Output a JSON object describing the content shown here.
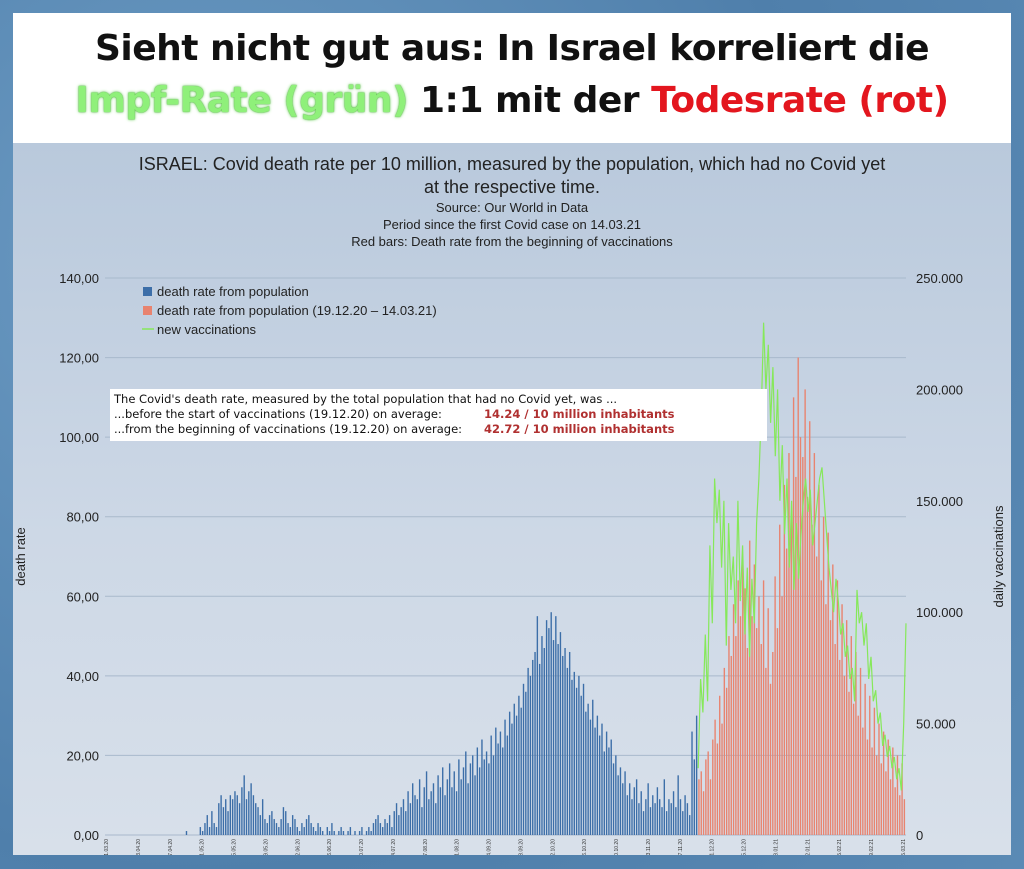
{
  "headline": {
    "line1": "Sieht nicht gut aus: In Israel korreliert die",
    "line2_green": "Impf-Rate (grün)",
    "line2_mid": " 1:1 mit der ",
    "line2_red": "Todesrate (rot)"
  },
  "colors": {
    "blue_bars": "#3c6ea8",
    "red_bars": "#e8836f",
    "green_line": "#86e85a",
    "annotation_value": "#b03030",
    "headline_red": "#e3161e",
    "headline_green": "#8ff07a"
  },
  "annotation": {
    "line1": "The Covid's death rate, measured by the total population that had no Covid yet, was ...",
    "line2_text": "...before the start of vaccinations (19.12.20) on average:",
    "line2_value": "14.24 / 10 million inhabitants",
    "line3_text": "...from the beginning of vaccinations (19.12.20) on average:",
    "line3_value": "42.72 / 10 million inhabitants"
  },
  "chart_data": {
    "type": "bar",
    "title": "ISRAEL: Covid death rate per 10 million, measured by the population, which had no Covid yet at the respective time.",
    "subtitle_lines": [
      "Source: Our World in Data",
      "Period since the first Covid case on 14.03.21",
      "Red bars: Death rate from the beginning of vaccinations"
    ],
    "ylabel": "death rate",
    "y2label": "daily vaccinations",
    "ylim": [
      0,
      140
    ],
    "y2lim": [
      0,
      250000
    ],
    "y_ticks": [
      "0,00",
      "20,00",
      "40,00",
      "60,00",
      "80,00",
      "100,00",
      "120,00",
      "140,00"
    ],
    "y2_ticks": [
      "0",
      "50.000",
      "100.000",
      "150.000",
      "200.000",
      "250.000"
    ],
    "grid": true,
    "legend_position": "top-left",
    "legend": [
      "death rate from population",
      "death rate from population (19.12.20 – 14.03.21)",
      "new vaccinations"
    ],
    "x_tick_labels": [
      "21.03.20",
      "03.04.20",
      "17.04.20",
      "01.05.20",
      "15.05.20",
      "29.05.20",
      "12.06.20",
      "26.06.20",
      "10.07.20",
      "24.07.20",
      "07.08.20",
      "21.08.20",
      "04.09.20",
      "18.09.20",
      "02.10.20",
      "16.10.20",
      "30.10.20",
      "13.11.20",
      "27.11.20",
      "11.12.20",
      "25.12.20",
      "08.01.21",
      "22.01.21",
      "05.02.21",
      "19.02.21",
      "05.03.21"
    ],
    "series": [
      {
        "name": "death rate from population",
        "values": [
          0,
          0,
          0,
          0,
          0,
          0,
          0,
          0,
          0,
          0,
          0,
          0,
          0,
          0,
          0,
          0,
          0,
          0,
          0,
          0,
          0,
          0,
          0,
          0,
          0,
          0,
          0,
          0,
          0,
          0,
          0,
          0,
          0,
          0,
          0,
          1,
          0,
          0,
          0,
          0,
          0,
          2,
          1,
          3,
          5,
          2,
          6,
          3,
          2,
          8,
          10,
          7,
          9,
          6,
          10,
          9,
          11,
          10,
          8,
          12,
          15,
          9,
          11,
          13,
          10,
          8,
          7,
          5,
          9,
          4,
          3,
          5,
          6,
          4,
          3,
          2,
          4,
          7,
          6,
          3,
          2,
          5,
          4,
          2,
          1,
          3,
          2,
          4,
          5,
          3,
          2,
          1,
          3,
          2,
          1,
          0,
          2,
          1,
          3,
          1,
          0,
          1,
          2,
          1,
          0,
          1,
          2,
          0,
          1,
          0,
          1,
          2,
          0,
          1,
          2,
          1,
          3,
          4,
          5,
          3,
          2,
          4,
          3,
          5,
          2,
          6,
          8,
          5,
          7,
          9,
          6,
          11,
          8,
          13,
          10,
          9,
          14,
          7,
          12,
          16,
          9,
          11,
          13,
          8,
          15,
          12,
          17,
          10,
          14,
          18,
          12,
          16,
          11,
          19,
          14,
          17,
          21,
          13,
          18,
          20,
          15,
          22,
          17,
          24,
          19,
          21,
          18,
          25,
          20,
          27,
          23,
          26,
          22,
          29,
          25,
          31,
          28,
          33,
          30,
          35,
          32,
          38,
          36,
          42,
          40,
          44,
          46,
          55,
          43,
          50,
          47,
          54,
          52,
          56,
          49,
          55,
          48,
          51,
          45,
          47,
          42,
          46,
          39,
          41,
          37,
          40,
          35,
          38,
          31,
          33,
          29,
          34,
          27,
          30,
          25,
          28,
          21,
          26,
          22,
          24,
          18,
          20,
          15,
          17,
          13,
          16,
          10,
          13,
          9,
          12,
          14,
          8,
          11,
          6,
          9,
          13,
          7,
          10,
          8,
          12,
          9,
          7,
          14,
          6,
          9,
          8,
          11,
          7,
          15,
          9,
          6,
          10,
          8,
          5,
          26,
          19,
          30
        ],
        "color": "#3c6ea8"
      },
      {
        "name": "death rate from population (19.12.20 – 14.03.21)",
        "values": [
          14,
          16,
          11,
          19,
          21,
          14,
          24,
          29,
          23,
          35,
          28,
          42,
          37,
          50,
          45,
          58,
          50,
          64,
          55,
          70,
          62,
          47,
          74,
          55,
          68,
          52,
          60,
          48,
          64,
          42,
          57,
          38,
          46,
          65,
          52,
          78,
          60,
          88,
          72,
          96,
          80,
          110,
          90,
          120,
          100,
          95,
          112,
          85,
          104,
          78,
          96,
          70,
          88,
          64,
          80,
          58,
          76,
          54,
          68,
          48,
          64,
          44,
          58,
          40,
          54,
          36,
          50,
          33,
          46,
          30,
          42,
          27,
          38,
          24,
          35,
          22,
          32,
          20,
          28,
          18,
          26,
          16,
          24,
          14,
          22,
          12,
          20,
          10,
          18,
          9
        ],
        "color": "#e8836f"
      },
      {
        "name": "new vaccinations",
        "values": [
          30000,
          70000,
          55000,
          90000,
          60000,
          130000,
          95000,
          160000,
          140000,
          155000,
          120000,
          150000,
          85000,
          140000,
          110000,
          125000,
          95000,
          150000,
          105000,
          130000,
          90000,
          120000,
          80000,
          115000,
          95000,
          140000,
          160000,
          190000,
          230000,
          200000,
          220000,
          185000,
          210000,
          170000,
          200000,
          150000,
          175000,
          135000,
          160000,
          120000,
          150000,
          110000,
          140000,
          115000,
          135000,
          150000,
          160000,
          145000,
          155000,
          130000,
          140000,
          150000,
          160000,
          165000,
          150000,
          135000,
          120000,
          110000,
          100000,
          115000,
          105000,
          90000,
          95000,
          80000,
          85000,
          70000,
          75000,
          60000,
          110000,
          95000,
          100000,
          85000,
          95000,
          70000,
          80000,
          60000,
          65000,
          50000,
          55000,
          40000,
          45000,
          35000,
          40000,
          30000,
          35000,
          25000,
          30000,
          20000,
          50000,
          95000
        ]
      }
    ]
  }
}
